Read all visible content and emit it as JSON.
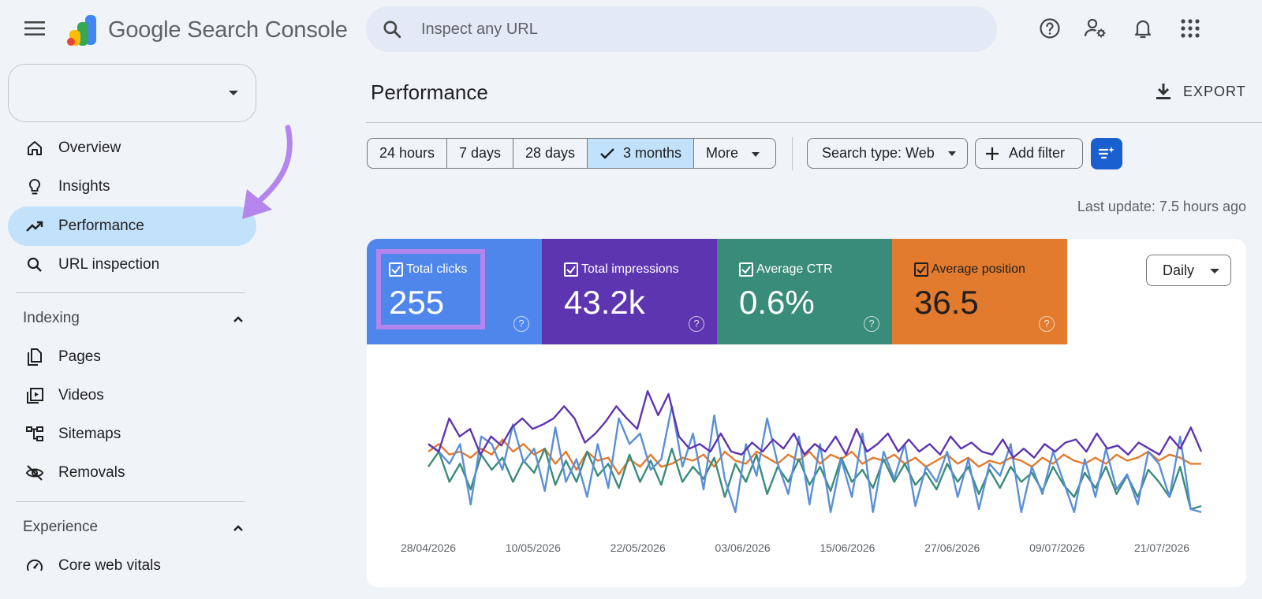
{
  "app": {
    "brand_google": "Google",
    "brand_product": "Search Console",
    "search_placeholder": "Inspect any URL"
  },
  "topbar_icons": [
    "help-icon",
    "manage-users-icon",
    "notifications-icon",
    "apps-grid-icon"
  ],
  "sidebar": {
    "property_value": "",
    "items": [
      {
        "label": "Overview",
        "icon": "home-icon"
      },
      {
        "label": "Insights",
        "icon": "lightbulb-icon"
      },
      {
        "label": "Performance",
        "icon": "trending-up-icon",
        "active": true
      },
      {
        "label": "URL inspection",
        "icon": "search-icon"
      }
    ],
    "sections": [
      {
        "title": "Indexing",
        "expanded": true,
        "items": [
          {
            "label": "Pages",
            "icon": "pages-icon"
          },
          {
            "label": "Videos",
            "icon": "video-icon"
          },
          {
            "label": "Sitemaps",
            "icon": "sitemap-icon"
          },
          {
            "label": "Removals",
            "icon": "eye-off-icon"
          }
        ]
      },
      {
        "title": "Experience",
        "expanded": true,
        "items": [
          {
            "label": "Core web vitals",
            "icon": "speed-icon"
          }
        ]
      }
    ]
  },
  "main": {
    "title": "Performance",
    "export_label": "EXPORT",
    "date_ranges": [
      "24 hours",
      "7 days",
      "28 days",
      "3 months",
      "More"
    ],
    "selected_range": "3 months",
    "search_type": "Search type: Web",
    "add_filter": "Add filter",
    "last_update": "Last update: 7.5 hours ago",
    "granularity": "Daily"
  },
  "metrics": [
    {
      "label": "Total clicks",
      "value": "255",
      "color": "#4e86ec",
      "checked": true
    },
    {
      "label": "Total impressions",
      "value": "43.2k",
      "color": "#5e35b1",
      "checked": true
    },
    {
      "label": "Average CTR",
      "value": "0.6%",
      "color": "#3a8c7a",
      "checked": true
    },
    {
      "label": "Average position",
      "value": "36.5",
      "color": "#e37b2e",
      "checked": true
    }
  ],
  "chart_data": {
    "type": "line",
    "x_ticks": [
      "28/04/2026",
      "10/05/2026",
      "22/05/2026",
      "03/06/2026",
      "15/06/2026",
      "27/06/2026",
      "09/07/2026",
      "21/07/2026"
    ],
    "grid": false,
    "series": [
      {
        "name": "Total clicks",
        "color": "#5b8fd6",
        "values": [
          0.55,
          0.5,
          0.42,
          0.55,
          0.15,
          0.6,
          0.55,
          0.38,
          0.68,
          0.43,
          0.52,
          0.24,
          0.66,
          0.3,
          0.45,
          0.2,
          0.55,
          0.26,
          0.72,
          0.55,
          0.62,
          0.38,
          0.45,
          0.8,
          0.4,
          0.62,
          0.25,
          0.74,
          0.32,
          0.1,
          0.55,
          0.34,
          0.72,
          0.42,
          0.22,
          0.6,
          0.15,
          0.55,
          0.1,
          0.45,
          0.2,
          0.62,
          0.1,
          0.5,
          0.32,
          0.55,
          0.14,
          0.4,
          0.3,
          0.5,
          0.2,
          0.45,
          0.12,
          0.42,
          0.34,
          0.55,
          0.1,
          0.4,
          0.22,
          0.5,
          0.3,
          0.1,
          0.45,
          0.2,
          0.52,
          0.25,
          0.35,
          0.15,
          0.5,
          0.42,
          0.2,
          0.6,
          0.12,
          0.1
        ]
      },
      {
        "name": "Total impressions",
        "color": "#5e35b1",
        "values": [
          0.55,
          0.5,
          0.72,
          0.6,
          0.65,
          0.48,
          0.6,
          0.54,
          0.66,
          0.72,
          0.65,
          0.68,
          0.72,
          0.8,
          0.72,
          0.56,
          0.62,
          0.7,
          0.8,
          0.72,
          0.65,
          0.9,
          0.74,
          0.88,
          0.6,
          0.52,
          0.55,
          0.5,
          0.62,
          0.5,
          0.48,
          0.56,
          0.5,
          0.58,
          0.52,
          0.62,
          0.48,
          0.55,
          0.5,
          0.6,
          0.48,
          0.65,
          0.5,
          0.55,
          0.62,
          0.5,
          0.58,
          0.5,
          0.55,
          0.48,
          0.6,
          0.52,
          0.56,
          0.5,
          0.48,
          0.58,
          0.46,
          0.52,
          0.46,
          0.55,
          0.5,
          0.56,
          0.58,
          0.5,
          0.62,
          0.52,
          0.54,
          0.48,
          0.56,
          0.52,
          0.48,
          0.6,
          0.52,
          0.66,
          0.5
        ]
      },
      {
        "name": "Average CTR",
        "color": "#3a8c7a",
        "values": [
          0.4,
          0.5,
          0.3,
          0.42,
          0.25,
          0.48,
          0.38,
          0.46,
          0.3,
          0.44,
          0.36,
          0.52,
          0.28,
          0.44,
          0.3,
          0.5,
          0.34,
          0.42,
          0.26,
          0.48,
          0.3,
          0.44,
          0.28,
          0.52,
          0.3,
          0.4,
          0.32,
          0.46,
          0.2,
          0.42,
          0.3,
          0.48,
          0.22,
          0.4,
          0.3,
          0.45,
          0.28,
          0.4,
          0.24,
          0.46,
          0.3,
          0.38,
          0.26,
          0.45,
          0.3,
          0.42,
          0.28,
          0.36,
          0.25,
          0.42,
          0.3,
          0.4,
          0.22,
          0.38,
          0.26,
          0.4,
          0.3,
          0.36,
          0.24,
          0.4,
          0.28,
          0.2,
          0.36,
          0.26,
          0.4,
          0.22,
          0.34,
          0.2,
          0.38,
          0.3,
          0.2,
          0.4,
          0.12,
          0.14
        ]
      },
      {
        "name": "Average position",
        "color": "#e37b2e",
        "values": [
          0.5,
          0.55,
          0.48,
          0.5,
          0.46,
          0.52,
          0.48,
          0.58,
          0.5,
          0.55,
          0.48,
          0.52,
          0.42,
          0.5,
          0.38,
          0.5,
          0.44,
          0.46,
          0.35,
          0.45,
          0.4,
          0.48,
          0.4,
          0.42,
          0.46,
          0.44,
          0.48,
          0.4,
          0.5,
          0.44,
          0.42,
          0.5,
          0.46,
          0.42,
          0.48,
          0.44,
          0.5,
          0.42,
          0.48,
          0.45,
          0.5,
          0.42,
          0.46,
          0.44,
          0.48,
          0.42,
          0.46,
          0.4,
          0.44,
          0.48,
          0.42,
          0.46,
          0.4,
          0.44,
          0.42,
          0.46,
          0.44,
          0.4,
          0.46,
          0.42,
          0.48,
          0.44,
          0.42,
          0.46,
          0.42,
          0.48,
          0.44,
          0.46,
          0.5,
          0.44,
          0.48,
          0.46,
          0.42,
          0.42
        ]
      }
    ]
  }
}
